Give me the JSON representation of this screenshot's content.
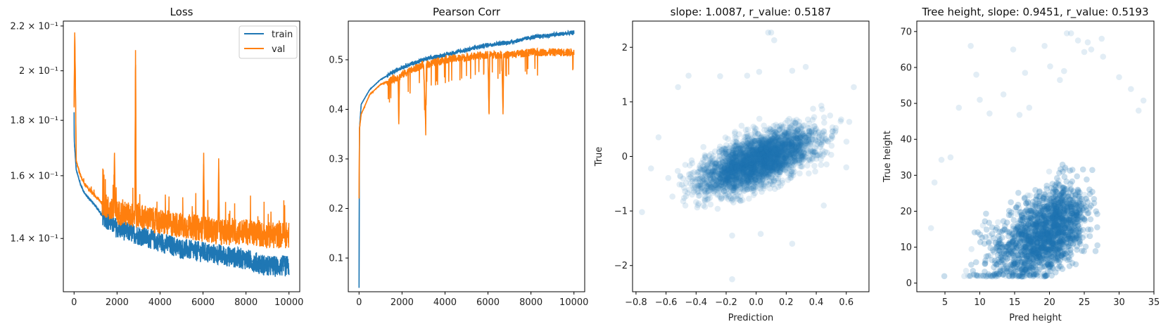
{
  "chart_data": [
    {
      "type": "line",
      "title": "Loss",
      "xlabel": "",
      "ylabel": "",
      "yscale": "log",
      "xlim": [
        -500,
        10500
      ],
      "ylim": [
        0.125,
        0.2223
      ],
      "xticks": [
        0,
        2000,
        4000,
        6000,
        8000,
        10000
      ],
      "xtick_labels": [
        "0",
        "2000",
        "4000",
        "6000",
        "8000",
        "10000"
      ],
      "yticks": [
        0.14,
        0.16,
        0.18,
        0.2,
        0.22
      ],
      "ytick_labels": [
        "1.4 × 10⁻¹",
        "1.6 × 10⁻¹",
        "1.8 × 10⁻¹",
        "2 × 10⁻¹",
        "2.2 × 10⁻¹"
      ],
      "legend": {
        "placement": "top-right",
        "entries": [
          "train",
          "val"
        ]
      },
      "series": [
        {
          "name": "train",
          "color": "#1f77b4",
          "x": [
            0,
            10,
            100,
            300,
            500,
            1000,
            1300,
            2000,
            3000,
            4000,
            5000,
            6000,
            7000,
            8000,
            9000,
            10000
          ],
          "values": [
            0.183,
            0.172,
            0.162,
            0.157,
            0.154,
            0.15,
            0.147,
            0.143,
            0.141,
            0.139,
            0.137,
            0.136,
            0.135,
            0.134,
            0.132,
            0.132
          ]
        },
        {
          "name": "val",
          "color": "#ff7f0e",
          "x": [
            0,
            30,
            60,
            100,
            300,
            500,
            1000,
            1300,
            1850,
            1880,
            1910,
            2000,
            2830,
            2860,
            2890,
            3000,
            4000,
            5000,
            6000,
            6030,
            6060,
            6700,
            6730,
            6760,
            7000,
            8000,
            9000,
            10000
          ],
          "values": [
            0.185,
            0.217,
            0.197,
            0.165,
            0.16,
            0.157,
            0.153,
            0.151,
            0.148,
            0.168,
            0.148,
            0.148,
            0.147,
            0.209,
            0.147,
            0.147,
            0.145,
            0.144,
            0.143,
            0.168,
            0.143,
            0.142,
            0.166,
            0.142,
            0.142,
            0.142,
            0.141,
            0.141
          ]
        }
      ]
    },
    {
      "type": "line",
      "title": "Pearson Corr",
      "xlabel": "",
      "ylabel": "",
      "xlim": [
        -500,
        10500
      ],
      "ylim": [
        0.032,
        0.578
      ],
      "xticks": [
        0,
        2000,
        4000,
        6000,
        8000,
        10000
      ],
      "xtick_labels": [
        "0",
        "2000",
        "4000",
        "6000",
        "8000",
        "10000"
      ],
      "yticks": [
        0.1,
        0.2,
        0.3,
        0.4,
        0.5
      ],
      "ytick_labels": [
        "0.1",
        "0.2",
        "0.3",
        "0.4",
        "0.5"
      ],
      "series": [
        {
          "name": "train",
          "color": "#1f77b4",
          "x": [
            0,
            20,
            100,
            500,
            1000,
            2000,
            3000,
            4000,
            5000,
            6000,
            7000,
            8000,
            9000,
            10000
          ],
          "values": [
            0.04,
            0.36,
            0.41,
            0.44,
            0.46,
            0.485,
            0.5,
            0.51,
            0.52,
            0.53,
            0.535,
            0.545,
            0.55,
            0.555
          ]
        },
        {
          "name": "val",
          "color": "#ff7f0e",
          "x": [
            0,
            20,
            100,
            500,
            1000,
            1820,
            1850,
            1880,
            2000,
            3000,
            3100,
            3130,
            4000,
            5000,
            6000,
            6050,
            6080,
            6650,
            6700,
            6730,
            7000,
            8000,
            9000,
            10000
          ],
          "values": [
            0.22,
            0.36,
            0.39,
            0.43,
            0.45,
            0.465,
            0.37,
            0.465,
            0.47,
            0.49,
            0.37,
            0.49,
            0.5,
            0.505,
            0.51,
            0.39,
            0.51,
            0.51,
            0.39,
            0.51,
            0.51,
            0.515,
            0.515,
            0.515
          ]
        }
      ]
    },
    {
      "type": "scatter",
      "title": "slope: 1.0087, r_value: 0.5187",
      "xlabel": "Prediction",
      "ylabel": "True",
      "xlim": [
        -0.823,
        0.751
      ],
      "ylim": [
        -2.48,
        2.48
      ],
      "xticks": [
        -0.8,
        -0.6,
        -0.4,
        -0.2,
        0.0,
        0.2,
        0.4,
        0.6
      ],
      "xtick_labels": [
        "−0.8",
        "−0.6",
        "−0.4",
        "−0.2",
        "0.0",
        "0.2",
        "0.4",
        "0.6"
      ],
      "yticks": [
        -2,
        -1,
        0,
        1,
        2
      ],
      "ytick_labels": [
        "−2",
        "−1",
        "0",
        "1",
        "2"
      ],
      "color": "#1f77b4",
      "alpha": 0.1,
      "slope": 1.0087,
      "r_value": 0.5187,
      "points": [
        [
          0.08,
          2.27
        ],
        [
          0.1,
          2.27
        ],
        [
          0.12,
          2.13
        ],
        [
          -0.16,
          -2.25
        ],
        [
          0.24,
          -1.6
        ],
        [
          -0.45,
          1.48
        ],
        [
          0.33,
          1.64
        ],
        [
          -0.7,
          -0.22
        ],
        [
          -0.65,
          0.35
        ],
        [
          -0.76,
          -1.02
        ],
        [
          -0.24,
          1.47
        ],
        [
          -0.06,
          1.48
        ],
        [
          0.02,
          1.55
        ],
        [
          0.24,
          1.57
        ],
        [
          -0.52,
          1.27
        ],
        [
          0.65,
          1.27
        ],
        [
          0.6,
          -0.2
        ],
        [
          0.45,
          -0.9
        ],
        [
          -0.16,
          -1.45
        ],
        [
          0.03,
          -1.42
        ]
      ]
    },
    {
      "type": "scatter",
      "title": "Tree height, slope: 0.9451, r_value: 0.5193",
      "xlabel": "Pred height",
      "ylabel": "True height",
      "xlim": [
        0.96,
        35
      ],
      "ylim": [
        -2.4,
        72.9
      ],
      "xticks": [
        5,
        10,
        15,
        20,
        25,
        30,
        35
      ],
      "xtick_labels": [
        "5",
        "10",
        "15",
        "20",
        "25",
        "30",
        "35"
      ],
      "yticks": [
        0,
        10,
        20,
        30,
        40,
        50,
        60,
        70
      ],
      "ytick_labels": [
        "0",
        "10",
        "20",
        "30",
        "40",
        "50",
        "60",
        "70"
      ],
      "color": "#1f77b4",
      "alpha": 0.1,
      "slope": 0.9451,
      "r_value": 0.5193,
      "points": [
        [
          8.7,
          66
        ],
        [
          14.8,
          65
        ],
        [
          22.5,
          69.5
        ],
        [
          23.1,
          69.5
        ],
        [
          27.5,
          68
        ],
        [
          9.5,
          58
        ],
        [
          19.3,
          66
        ],
        [
          20.1,
          60.3
        ],
        [
          25,
          64.3
        ],
        [
          27.7,
          63
        ],
        [
          10,
          51
        ],
        [
          13.4,
          52.5
        ],
        [
          33.5,
          50.8
        ],
        [
          32.8,
          48
        ],
        [
          7,
          48.8
        ],
        [
          31.7,
          54
        ],
        [
          3.5,
          28
        ],
        [
          3,
          15.3
        ],
        [
          16.5,
          58.5
        ],
        [
          22.1,
          59
        ],
        [
          24.1,
          67.5
        ],
        [
          25.5,
          67
        ],
        [
          26,
          65
        ],
        [
          21.5,
          56.5
        ],
        [
          30,
          57.3
        ],
        [
          11.4,
          47.2
        ],
        [
          15.7,
          46.8
        ],
        [
          17.1,
          48.8
        ],
        [
          5.8,
          35
        ],
        [
          4.5,
          34.3
        ]
      ]
    }
  ]
}
